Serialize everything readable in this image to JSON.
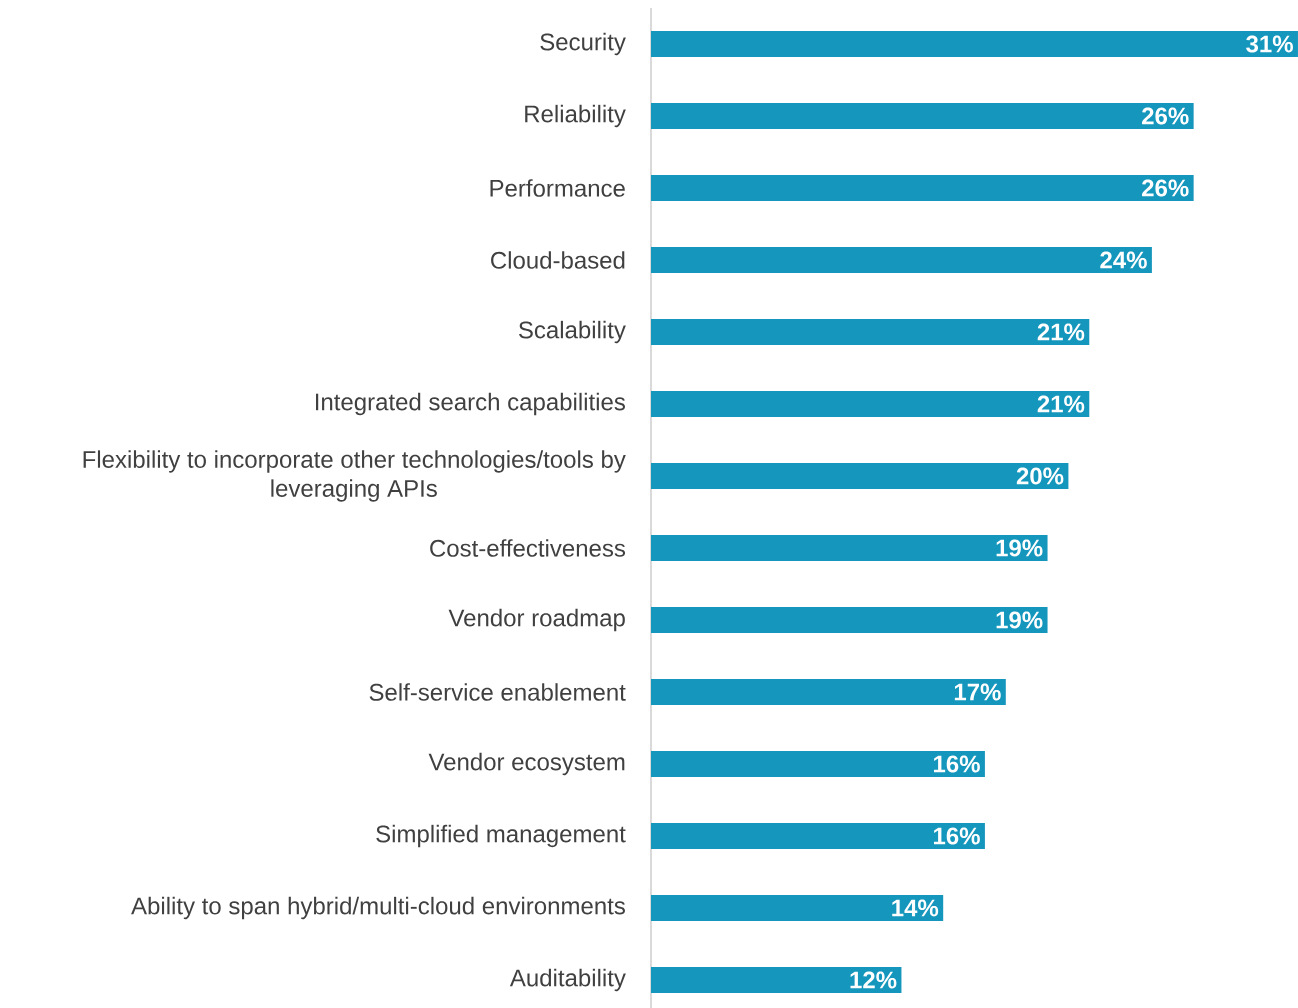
{
  "chart_data": {
    "type": "bar",
    "orientation": "horizontal",
    "color": "#1596bd",
    "categories": [
      "Security",
      "Reliability",
      "Performance",
      "Cloud-based",
      "Scalability",
      "Integrated search capabilities",
      "Flexibility to incorporate other technologies/tools by leveraging APIs",
      "Cost-effectiveness",
      "Vendor roadmap",
      "Self-service enablement",
      "Vendor ecosystem",
      "Simplified management",
      "Ability to span hybrid/multi-cloud environments",
      "Auditability"
    ],
    "values": [
      31,
      26,
      26,
      24,
      21,
      21,
      20,
      19,
      19,
      17,
      16,
      16,
      14,
      12
    ],
    "value_labels": [
      "31%",
      "26%",
      "26%",
      "24%",
      "21%",
      "21%",
      "20%",
      "19%",
      "19%",
      "17%",
      "16%",
      "16%",
      "14%",
      "12%"
    ]
  }
}
